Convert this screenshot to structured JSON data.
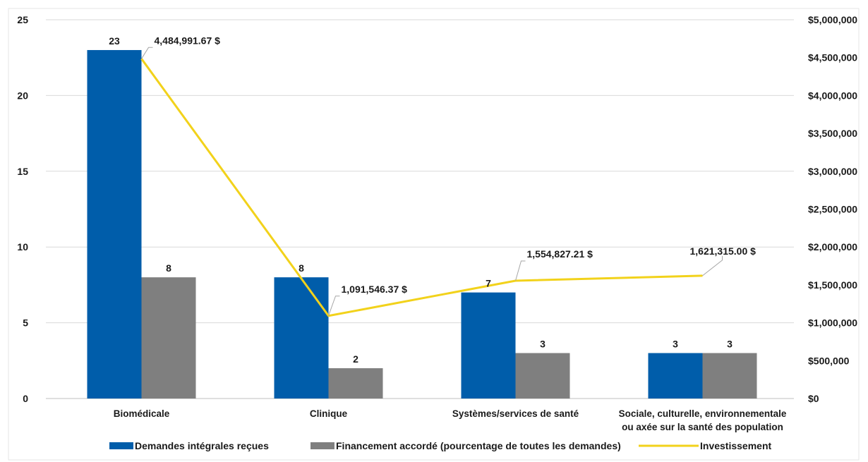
{
  "chart_data": {
    "type": "bar",
    "categories": [
      [
        "Biomédicale"
      ],
      [
        "Clinique"
      ],
      [
        "Systèmes/services de santé"
      ],
      [
        "Sociale, culturelle, environnementale",
        "ou axée sur la santé des population"
      ]
    ],
    "series": [
      {
        "name": "Demandes intégrales reçues",
        "type": "bar",
        "axis": "left",
        "color": "#005DAA",
        "values": [
          23,
          8,
          7,
          3
        ],
        "labels": [
          "23",
          "8",
          "7",
          "3"
        ]
      },
      {
        "name": "Financement accordé (pourcentage de toutes les demandes)",
        "type": "bar",
        "axis": "left",
        "color": "#7F7F7F",
        "values": [
          8,
          2,
          3,
          3
        ],
        "labels": [
          "8",
          "2",
          "3",
          "3"
        ]
      },
      {
        "name": "Investissement",
        "type": "line",
        "axis": "right",
        "color": "#F2D21B",
        "values": [
          4484991.67,
          1091546.37,
          1554827.21,
          1621315.0
        ],
        "labels": [
          "4,484,991.67 $",
          "1,091,546.37 $",
          "1,554,827.21 $",
          "1,621,315.00 $"
        ]
      }
    ],
    "y_left": {
      "ylim": [
        0,
        25
      ],
      "ticks": [
        0,
        5,
        10,
        15,
        20,
        25
      ],
      "tick_labels": [
        "0",
        "5",
        "10",
        "15",
        "20",
        "25"
      ]
    },
    "y_right": {
      "ylim": [
        0,
        5000000
      ],
      "ticks": [
        0,
        500000,
        1000000,
        1500000,
        2000000,
        2500000,
        3000000,
        3500000,
        4000000,
        4500000,
        5000000
      ],
      "tick_labels": [
        "$0",
        "$500,000",
        "$1,000,000",
        "$1,500,000",
        "$2,000,000",
        "$2,500,000",
        "$3,000,000",
        "$3,500,000",
        "$4,000,000",
        "$4,500,000",
        "$5,000,000"
      ]
    },
    "grid": true,
    "legend_position": "bottom",
    "title": "",
    "xlabel": "",
    "ylabel": ""
  }
}
